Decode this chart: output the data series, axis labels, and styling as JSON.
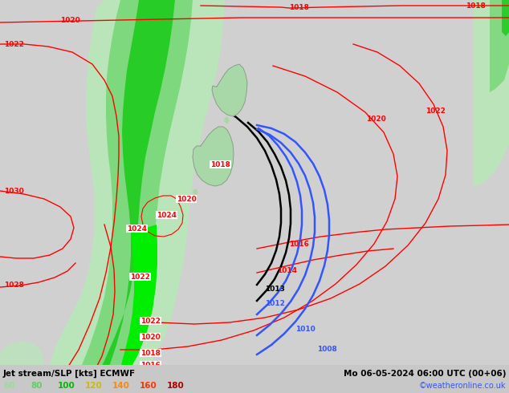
{
  "title_left": "Jet stream/SLP [kts] ECMWF",
  "title_right": "Mo 06-05-2024 06:00 UTC (00+06)",
  "credit": "©weatheronline.co.uk",
  "legend_values": [
    "60",
    "80",
    "100",
    "120",
    "140",
    "160",
    "180"
  ],
  "bg_color": "#d0d0d0",
  "map_bg": "#dcdcdc",
  "fig_width": 6.34,
  "fig_height": 4.9,
  "dpi": 100
}
